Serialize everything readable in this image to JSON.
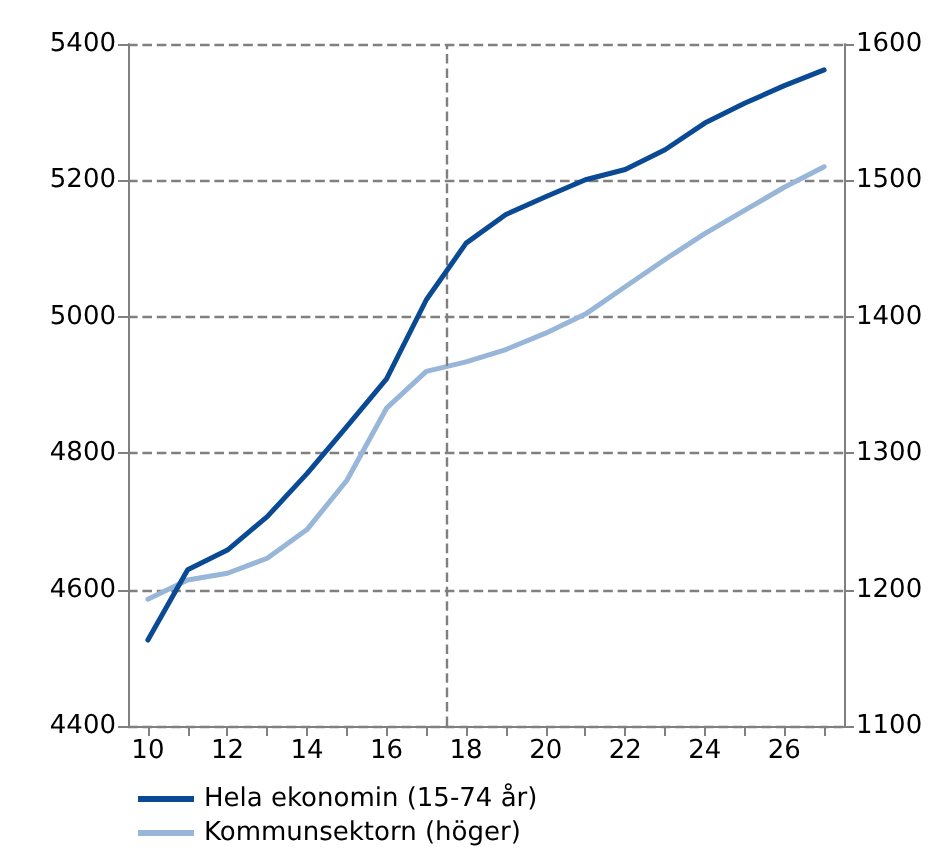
{
  "chart_data": {
    "type": "line",
    "x": [
      10,
      11,
      12,
      13,
      14,
      15,
      16,
      17,
      18,
      19,
      20,
      21,
      22,
      23,
      24,
      25,
      26,
      27
    ],
    "series": [
      {
        "name": "Hela ekonomin (15-74 år)",
        "color": "#0a4a94",
        "values": [
          4526,
          4629,
          4658,
          4707,
          4770,
          4839,
          4909,
          5025,
          5108,
          5150,
          5176,
          5201,
          5216,
          5245,
          5284,
          5313,
          5339,
          5362
        ]
      },
      {
        "name": "Kommunsektorn (höger)",
        "color": "#98b6d8",
        "axis": "y2",
        "values": [
          1193,
          1207,
          1212,
          1223,
          1244,
          1280,
          1333,
          1360,
          1367,
          1376,
          1388,
          1402,
          1422,
          1442,
          1461,
          1478,
          1495,
          1510
        ]
      }
    ],
    "xlim": [
      9.5,
      27.5
    ],
    "xticks": [
      10,
      {
        "value": 11,
        "label": null
      },
      12,
      {
        "value": 13,
        "label": null
      },
      14,
      {
        "value": 15,
        "label": null
      },
      16,
      {
        "value": 17,
        "label": null
      },
      18,
      {
        "value": 19,
        "label": null
      },
      20,
      {
        "value": 21,
        "label": null
      },
      22,
      {
        "value": 23,
        "label": null
      },
      24,
      {
        "value": 25,
        "label": null
      },
      26,
      {
        "value": 27,
        "label": null
      }
    ],
    "ylim": [
      4400,
      5400
    ],
    "yticks": [
      4400,
      4600,
      4800,
      5000,
      5200,
      5400
    ],
    "y2lim": [
      1100,
      1600
    ],
    "y2ticks": [
      1100,
      1200,
      1300,
      1400,
      1500,
      1600
    ],
    "ref_lines": [
      {
        "axis": "x",
        "value": 17.5,
        "line_style": "dashed",
        "color": "#808080"
      }
    ],
    "grid": "y",
    "legend": "bottom left",
    "marker": "none",
    "line_style": "solid"
  }
}
